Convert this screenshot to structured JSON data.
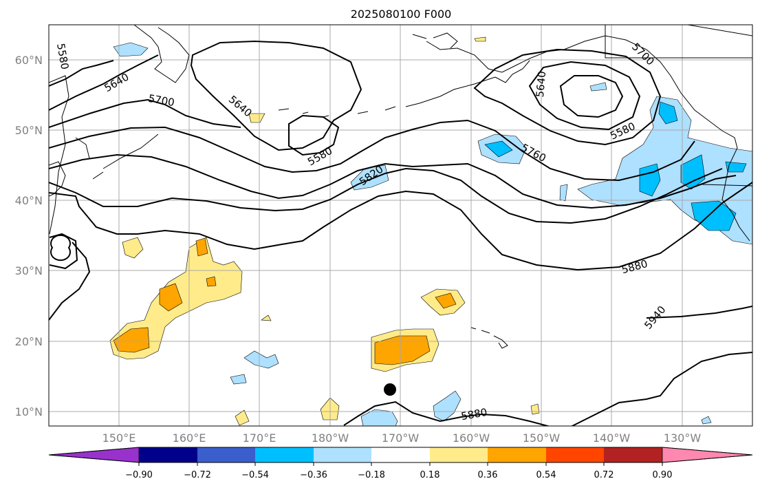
{
  "map": {
    "title": "2025080100 F000",
    "lat_ticks": [
      "60°N",
      "50°N",
      "40°N",
      "30°N",
      "20°N",
      "10°N"
    ],
    "lon_ticks": [
      "150°E",
      "160°E",
      "170°E",
      "180°W",
      "170°W",
      "160°W",
      "150°W",
      "140°W",
      "130°W"
    ],
    "contour_labels": [
      "5580",
      "5640",
      "5700",
      "5640",
      "5580",
      "5820",
      "5760",
      "5640",
      "5700",
      "5580",
      "5880",
      "5940",
      "5880"
    ],
    "colorbar": {
      "tick_labels": [
        "−0.90",
        "−0.72",
        "−0.54",
        "−0.36",
        "−0.18",
        "0.18",
        "0.36",
        "0.54",
        "0.72",
        "0.90"
      ],
      "colors": [
        "#9932CC",
        "#00008B",
        "#3A5ECC",
        "#00BFFF",
        "#AEE0FF",
        "#FFFFFF",
        "#FFEB8A",
        "#FFA500",
        "#FF4500",
        "#B22222",
        "#FF88B0"
      ]
    },
    "fill_colors": {
      "neg_light": "#AEE0FF",
      "neg_mid": "#00BFFF",
      "pos_light": "#FFEB8A",
      "pos_mid": "#FFA500"
    }
  }
}
